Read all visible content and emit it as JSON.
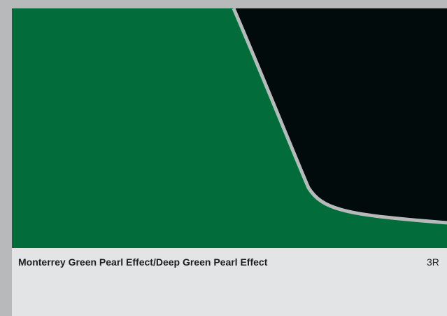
{
  "swatch": {
    "primary_color": "#026d3a",
    "secondary_color": "#010b0b",
    "divider_color": "#b7b9bb"
  },
  "caption": {
    "title": "Monterrey Green Pearl Effect/Deep Green Pearl Effect",
    "code": "3R"
  }
}
